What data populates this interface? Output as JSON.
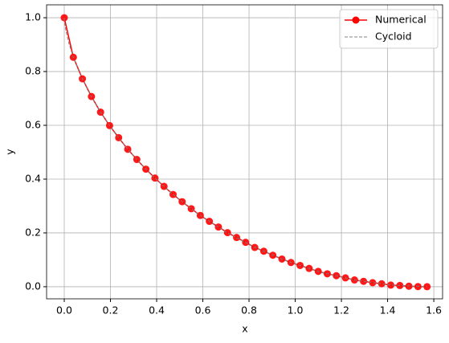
{
  "chart_data": {
    "type": "line",
    "xlabel": "x",
    "ylabel": "y",
    "xlim": [
      -0.0765,
      1.638
    ],
    "ylim": [
      -0.045,
      1.048
    ],
    "xticks": [
      {
        "value": 0,
        "label": "0.0"
      },
      0.2,
      0.4,
      0.6,
      0.8,
      {
        "value": 1,
        "label": "1.0"
      },
      1.2,
      1.4,
      1.6
    ],
    "yticks": [
      {
        "value": 0,
        "label": "0.0"
      },
      0.2,
      0.4,
      0.6,
      0.8,
      {
        "value": 1,
        "label": "1.0"
      }
    ],
    "grid": true,
    "legend": "upper right",
    "series": [
      {
        "name": "Numerical",
        "color": "#ff0000",
        "marker": true,
        "dashed": false,
        "x": [
          0,
          0.0393,
          0.0785,
          0.1178,
          0.1571,
          0.1963,
          0.2356,
          0.2749,
          0.3142,
          0.3534,
          0.3927,
          0.432,
          0.4712,
          0.5105,
          0.5498,
          0.589,
          0.6283,
          0.6676,
          0.7069,
          0.7461,
          0.7854,
          0.8247,
          0.8639,
          0.9032,
          0.9425,
          0.9817,
          1.021,
          1.0603,
          1.0996,
          1.1388,
          1.1781,
          1.2174,
          1.2566,
          1.2959,
          1.3352,
          1.3744,
          1.4137,
          1.453,
          1.4923,
          1.5315,
          1.5708
        ],
        "values": [
          1,
          0.853,
          0.773,
          0.707,
          0.649,
          0.599,
          0.554,
          0.511,
          0.473,
          0.437,
          0.404,
          0.373,
          0.343,
          0.316,
          0.29,
          0.265,
          0.243,
          0.222,
          0.201,
          0.183,
          0.165,
          0.146,
          0.132,
          0.117,
          0.103,
          0.09,
          0.079,
          0.068,
          0.057,
          0.048,
          0.041,
          0.033,
          0.025,
          0.02,
          0.015,
          0.011,
          0.006,
          0.0046,
          0.002,
          0.0005,
          0
        ]
      },
      {
        "name": "Cycloid",
        "color": "#808080",
        "marker": false,
        "dashed": true,
        "x": [
          0,
          0.0003,
          0.0026,
          0.0086,
          0.0203,
          0.0392,
          0.0667,
          0.1043,
          0.1528,
          0.213,
          0.2854,
          0.3701,
          0.467,
          0.5755,
          0.6951,
          0.8245,
          0.9627,
          1.1082,
          1.2592,
          1.414,
          1.5708
        ],
        "values": [
          1,
          0.9938,
          0.9755,
          0.9455,
          0.9045,
          0.8536,
          0.7939,
          0.727,
          0.6545,
          0.5782,
          0.5,
          0.4218,
          0.3455,
          0.273,
          0.2061,
          0.1465,
          0.0955,
          0.0545,
          0.0245,
          0.0062,
          0
        ]
      }
    ]
  }
}
